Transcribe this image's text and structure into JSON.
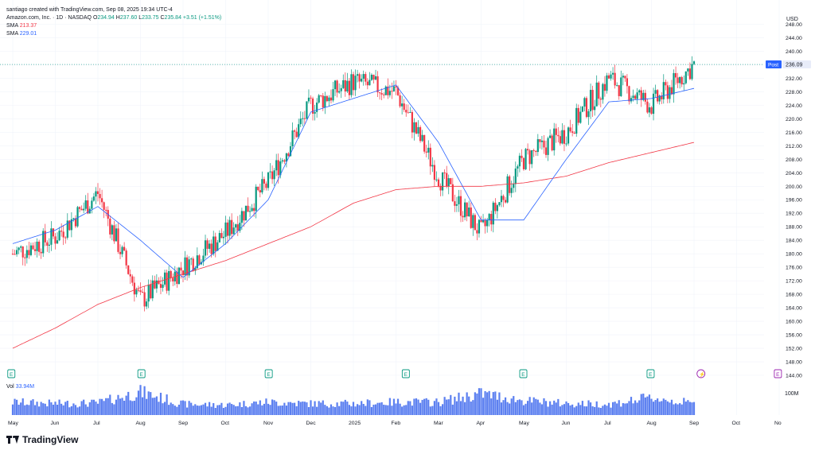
{
  "header": {
    "attribution": "santiago created with TradingView.com, Sep 08, 2025 19:34 UTC-4",
    "symbol": "Amazon.com, Inc. · 1D · NASDAQ",
    "ohlc": {
      "o_label": "O",
      "o": "234.94",
      "h_label": "H",
      "h": "237.60",
      "l_label": "L",
      "l": "233.75",
      "c_label": "C",
      "c": "235.84",
      "change": "+3.51 (+1.51%)"
    },
    "sma_slow_label": "SMA",
    "sma_slow_value": "213.37",
    "sma_fast_label": "SMA",
    "sma_fast_value": "229.01",
    "vol_label": "Vol",
    "vol_value": "33.94M"
  },
  "colors": {
    "up": "#089981",
    "down": "#f23645",
    "sma_slow": "#f23645",
    "sma_fast": "#2962ff",
    "volume": "#5b7ff0",
    "grid": "#f0f3fa",
    "text": "#131722"
  },
  "price_tag": {
    "label": "Post",
    "value": "236.09"
  },
  "brand": {
    "name": "TradingView"
  },
  "chart_data": {
    "type": "line",
    "ylabel": "USD",
    "ylim": [
      144,
      250
    ],
    "y_ticks": [
      "248.00",
      "244.00",
      "240.00",
      "236.00",
      "232.00",
      "228.00",
      "224.00",
      "220.00",
      "216.00",
      "212.00",
      "208.00",
      "204.00",
      "200.00",
      "196.00",
      "192.00",
      "188.00",
      "184.00",
      "180.00",
      "176.00",
      "172.00",
      "168.00",
      "164.00",
      "160.00",
      "156.00",
      "152.00",
      "148.00",
      "144.00"
    ],
    "x_ticks": [
      "May",
      "Jun",
      "Jul",
      "Aug",
      "Sep",
      "Oct",
      "Nov",
      "Dec",
      "2025",
      "Feb",
      "Mar",
      "Apr",
      "May",
      "Jun",
      "Jul",
      "Aug",
      "Sep",
      "Oct",
      "No"
    ],
    "x": [
      "2024-05",
      "2024-06",
      "2024-07",
      "2024-08",
      "2024-09",
      "2024-10",
      "2024-11",
      "2024-12",
      "2025-01",
      "2025-02",
      "2025-03",
      "2025-04",
      "2025-05",
      "2025-06",
      "2025-07",
      "2025-08",
      "2025-09",
      "2025-10",
      "2025-11"
    ],
    "series": [
      {
        "kind": "close",
        "values": [
          180,
          185,
          198,
          166,
          176,
          186,
          201,
          224,
          231,
          228,
          203,
          186,
          208,
          216,
          232,
          224,
          236,
          null,
          null
        ]
      },
      {
        "kind": "sma_fast",
        "values": [
          183,
          187,
          194,
          184,
          173,
          183,
          196,
          222,
          226,
          230,
          213,
          190,
          190,
          208,
          225,
          226,
          229,
          null,
          null
        ]
      },
      {
        "kind": "sma_slow",
        "values": [
          152,
          158,
          165,
          170,
          174,
          178,
          183,
          188,
          195,
          199,
          200,
          200,
          201,
          203,
          207,
          210,
          213,
          null,
          null
        ]
      }
    ],
    "volume": {
      "axis_label": "100M",
      "values": [
        45,
        40,
        42,
        80,
        38,
        35,
        45,
        40,
        40,
        45,
        45,
        75,
        50,
        40,
        38,
        60,
        40,
        null,
        null
      ]
    },
    "earnings_markers": [
      {
        "x": "2024-04-30",
        "label": "E"
      },
      {
        "x": "2024-08-01",
        "label": "E"
      },
      {
        "x": "2024-10-31",
        "label": "E"
      },
      {
        "x": "2025-02-06",
        "label": "E"
      },
      {
        "x": "2025-05-01",
        "label": "E"
      },
      {
        "x": "2025-07-31",
        "label": "E"
      },
      {
        "x": "2025-09-05",
        "label": "⚡"
      },
      {
        "x": "2025-10-30",
        "label": "E"
      }
    ]
  }
}
